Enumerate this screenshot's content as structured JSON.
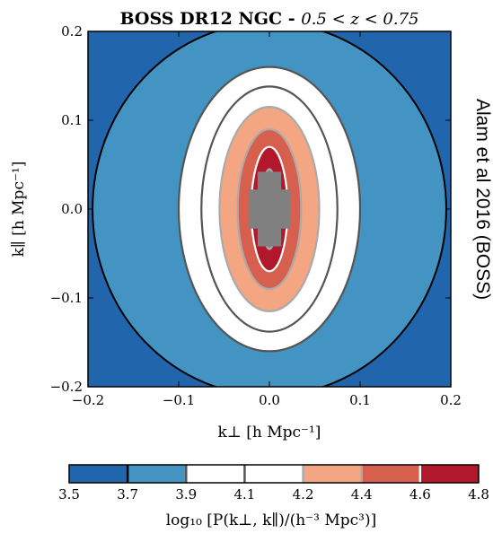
{
  "chart_data": {
    "type": "contour",
    "title": "BOSS DR12 NGC - ",
    "title_math": "0.5 < z < 0.75",
    "xlabel": "k⊥ [h Mpc⁻¹]",
    "ylabel": "k∥ [h Mpc⁻¹]",
    "xlim": [
      -0.2,
      0.2
    ],
    "ylim": [
      -0.2,
      0.2
    ],
    "xticks": [
      {
        "value": -0.2,
        "label": "−0.2"
      },
      {
        "value": -0.1,
        "label": "−0.1"
      },
      {
        "value": 0.0,
        "label": "0.0"
      },
      {
        "value": 0.1,
        "label": "0.1"
      },
      {
        "value": 0.2,
        "label": "0.2"
      }
    ],
    "yticks": [
      {
        "value": 0.2,
        "label": "0.2"
      },
      {
        "value": 0.1,
        "label": "0.1"
      },
      {
        "value": 0.0,
        "label": "0.0"
      },
      {
        "value": -0.1,
        "label": "−0.1"
      },
      {
        "value": -0.2,
        "label": "−0.2"
      }
    ],
    "contour_bands": [
      {
        "level_min": 3.5,
        "level_max": 3.7,
        "color": "#2166ac",
        "rx": 0.26,
        "ry": 0.25
      },
      {
        "level_min": 3.7,
        "level_max": 3.9,
        "color": "#4393c3",
        "rx": 0.195,
        "ry": 0.21
      },
      {
        "level_min": 3.9,
        "level_max": 4.1,
        "color": "#ffffff",
        "rx": 0.1,
        "ry": 0.16
      },
      {
        "level_min": 4.1,
        "level_max": 4.2,
        "color": "#ffffff",
        "rx": 0.075,
        "ry": 0.138
      },
      {
        "level_min": 4.2,
        "level_max": 4.4,
        "color": "#f4a582",
        "rx": 0.055,
        "ry": 0.115
      },
      {
        "level_min": 4.4,
        "level_max": 4.6,
        "color": "#d6604d",
        "rx": 0.035,
        "ry": 0.09
      },
      {
        "level_min": 4.6,
        "level_max": 4.8,
        "color": "#b2182b",
        "rx": 0.02,
        "ry": 0.07
      },
      {
        "level_min": 4.8,
        "level_max": null,
        "color": "#808080",
        "rx": 0.008,
        "ry": 0.045
      }
    ],
    "colorbar": {
      "ticks": [
        "3.5",
        "3.7",
        "3.9",
        "4.1",
        "4.2",
        "4.4",
        "4.6",
        "4.8"
      ],
      "colors": [
        "#2166ac",
        "#4393c3",
        "#ffffff",
        "#ffffff",
        "#f4a582",
        "#d6604d",
        "#b2182b"
      ],
      "label": "log₁₀ [P(k⊥, k∥)/(h⁻³ Mpc³)]"
    },
    "annotation": "Alam et al 2016 (BOSS)"
  }
}
